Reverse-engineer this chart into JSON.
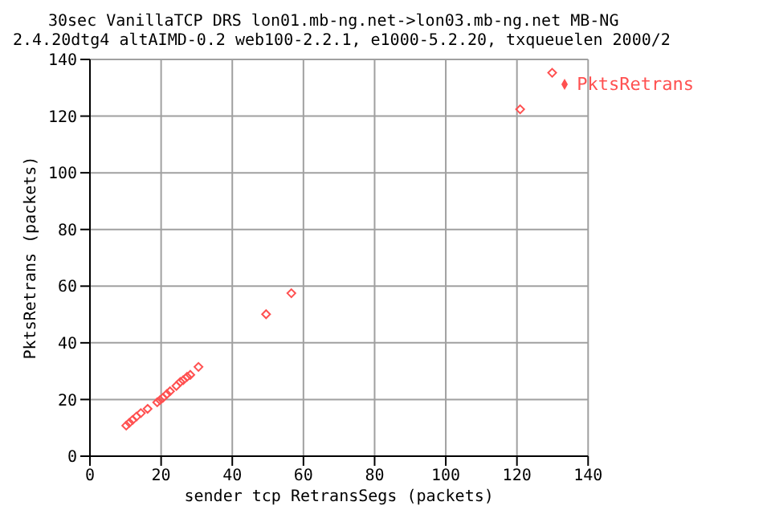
{
  "chart_data": {
    "type": "scatter",
    "title": "30sec VanillaTCP DRS lon01.mb-ng.net->lon03.mb-ng.net MB-NG",
    "subtitle": "2.4.20dtg4 altAIMD-0.2 web100-2.2.1, e1000-5.2.20, txqueuelen 2000/2",
    "xlabel": "sender tcp RetransSegs (packets)",
    "ylabel": "PktsRetrans (packets)",
    "x": [
      10.2,
      11.1,
      12,
      13.1,
      14.3,
      16.2,
      18.9,
      19.7,
      20.5,
      21.6,
      22.5,
      24.3,
      25.4,
      26.2,
      27.3,
      28.2,
      30.5,
      49.5,
      56.6,
      120.9,
      129.9
    ],
    "series": [
      {
        "name": "PktsRetrans",
        "color": "#ff5050",
        "values": [
          10.8,
          11.8,
          12.8,
          14,
          15.2,
          16.7,
          19,
          19.8,
          20.6,
          21.9,
          22.9,
          24.8,
          26.2,
          26.8,
          28,
          28.7,
          31.5,
          50.1,
          57.5,
          122.4,
          135.3
        ]
      }
    ],
    "xlim": [
      0,
      140
    ],
    "ylim": [
      0,
      140
    ],
    "xticks": [
      0,
      20,
      40,
      60,
      80,
      100,
      120,
      140
    ],
    "yticks": [
      0,
      20,
      40,
      60,
      80,
      100,
      120,
      140
    ],
    "grid": true,
    "legend": "top right",
    "marker": "diamond"
  }
}
